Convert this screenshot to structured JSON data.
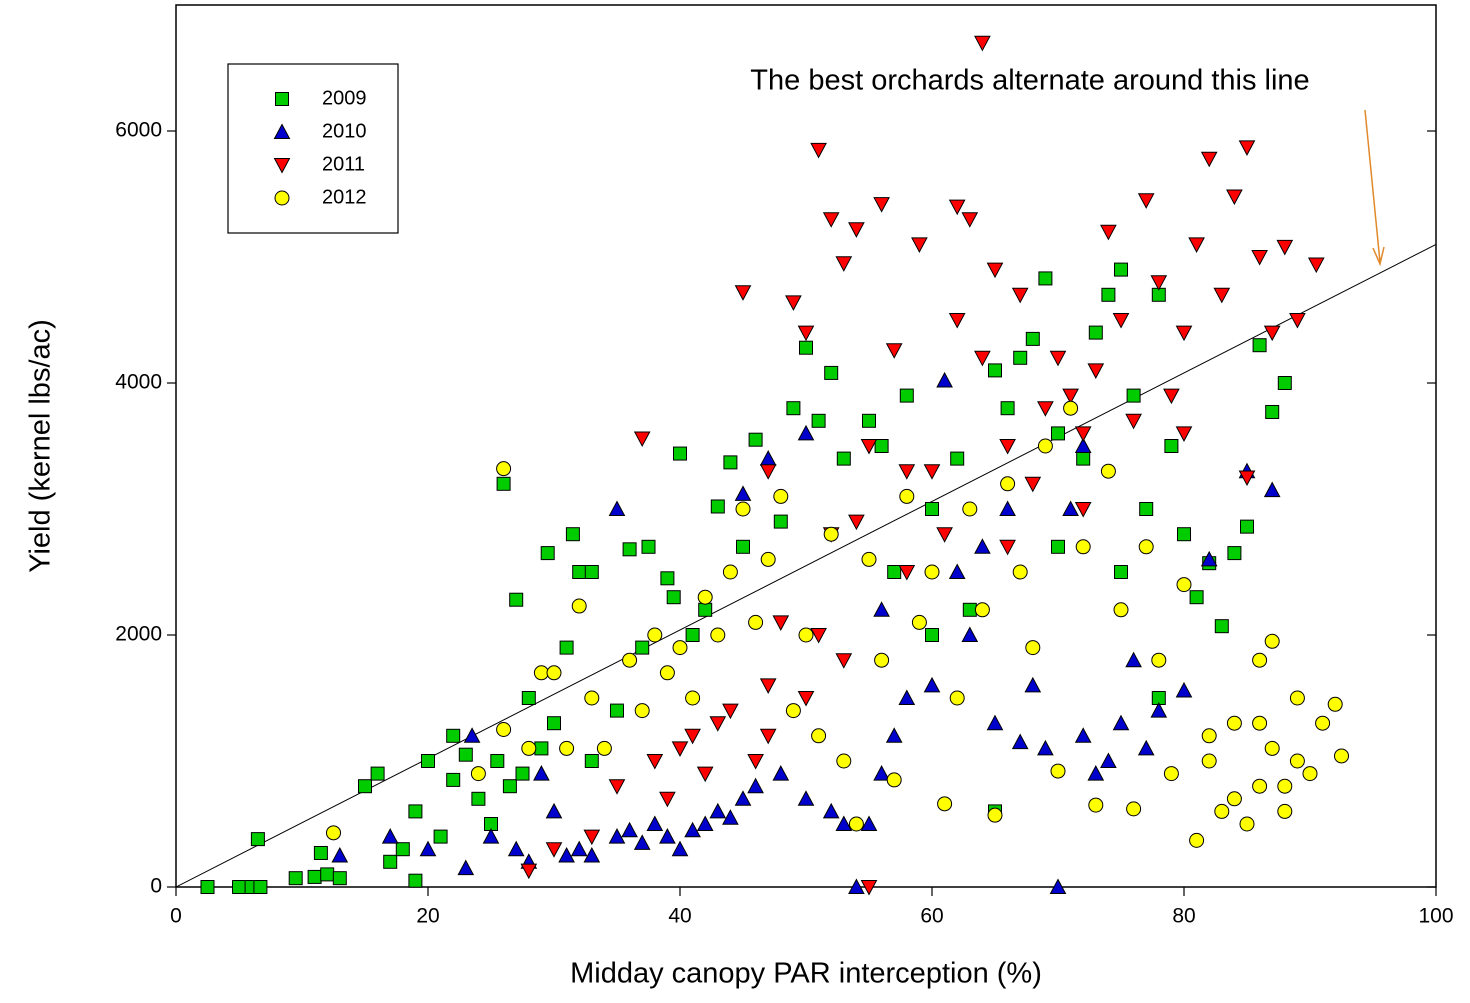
{
  "chart_data": {
    "type": "scatter",
    "xlabel": "Midday canopy PAR interception (%)",
    "ylabel": "Yield (kernel lbs/ac)",
    "annotation": "The best orchards alternate around this line",
    "xlim": [
      0,
      100
    ],
    "ylim": [
      0,
      7000
    ],
    "xticks": [
      0,
      20,
      40,
      60,
      80,
      100
    ],
    "yticks": [
      0,
      2000,
      4000,
      6000
    ],
    "legend": "upper left",
    "reference_line": {
      "x": [
        0,
        100
      ],
      "y": [
        0,
        5100
      ]
    },
    "series": [
      {
        "name": "2009",
        "color": "#00cc00",
        "marker": "square",
        "x": [
          2.5,
          5,
          6,
          6.7,
          6.5,
          9.5,
          11,
          11.5,
          12,
          13,
          15,
          16,
          17,
          18,
          19,
          19,
          20,
          21,
          22,
          22,
          23,
          24,
          25,
          26,
          25.5,
          26.5,
          27,
          27.5,
          28,
          29,
          29.5,
          30,
          31,
          31.5,
          32,
          33,
          33,
          35,
          36,
          37,
          37.5,
          39,
          39.5,
          40,
          41,
          42,
          43,
          44,
          45,
          46,
          48,
          49,
          50,
          51,
          52,
          53,
          55,
          56,
          58,
          60,
          62,
          63,
          65,
          66,
          67,
          68,
          69,
          70,
          72,
          73,
          74,
          75,
          76,
          77,
          78,
          79,
          80,
          81,
          82,
          83,
          84,
          85,
          86,
          87,
          88,
          78,
          75,
          57,
          60,
          65,
          70
        ],
        "y": [
          0,
          0,
          0,
          0,
          380,
          70,
          80,
          270,
          100,
          70,
          800,
          900,
          200,
          300,
          600,
          50,
          1000,
          400,
          850,
          1200,
          1050,
          700,
          500,
          3200,
          1000,
          800,
          2280,
          900,
          1500,
          1100,
          2650,
          1300,
          1900,
          2800,
          2500,
          2500,
          1000,
          1400,
          2680,
          1900,
          2700,
          2450,
          2300,
          3440,
          2000,
          2200,
          3020,
          3370,
          2700,
          3550,
          2900,
          3800,
          4280,
          3700,
          4080,
          3400,
          3700,
          3500,
          3900,
          3000,
          3400,
          2200,
          4100,
          3800,
          4200,
          4350,
          4830,
          3600,
          3400,
          4400,
          4700,
          4900,
          3900,
          3000,
          4700,
          3500,
          2800,
          2300,
          2570,
          2070,
          2650,
          2860,
          4300,
          3770,
          4000,
          1500,
          2500,
          2500,
          2000,
          600,
          2700
        ]
      },
      {
        "name": "2010",
        "color": "#0000cc",
        "marker": "triangle-up",
        "x": [
          13,
          17,
          20,
          23,
          23.5,
          25,
          27,
          28,
          29,
          30,
          31,
          32,
          33,
          35,
          35,
          36,
          37,
          38,
          39,
          40,
          41,
          42,
          43,
          44,
          45,
          45,
          46,
          47,
          48,
          50,
          50,
          52,
          53,
          54,
          55,
          56,
          57,
          58,
          60,
          61,
          62,
          63,
          65,
          67,
          68,
          69,
          70,
          71,
          72,
          73,
          74,
          75,
          76,
          77,
          78,
          80,
          82,
          85,
          87,
          66,
          72,
          64,
          56
        ],
        "y": [
          250,
          400,
          300,
          150,
          1200,
          400,
          300,
          200,
          900,
          600,
          250,
          300,
          250,
          3000,
          400,
          450,
          350,
          500,
          400,
          300,
          450,
          500,
          600,
          550,
          3120,
          700,
          800,
          3400,
          900,
          700,
          3600,
          600,
          500,
          0,
          500,
          900,
          1200,
          1500,
          1600,
          4020,
          2500,
          2000,
          1300,
          1150,
          1600,
          1100,
          0,
          3000,
          1200,
          900,
          1000,
          1300,
          1800,
          1100,
          1400,
          1560,
          2600,
          3300,
          3150,
          3000,
          3500,
          2700,
          2200
        ]
      },
      {
        "name": "2011",
        "color": "#ff0000",
        "marker": "triangle-down",
        "x": [
          28,
          30,
          33,
          35,
          37,
          38,
          39,
          40,
          41,
          42,
          43,
          44,
          45,
          46,
          47,
          47,
          48,
          49,
          50,
          50,
          51,
          51,
          52,
          52,
          53,
          53,
          54,
          55,
          55,
          56,
          57,
          58,
          59,
          60,
          61,
          62,
          62,
          63,
          64,
          64,
          65,
          66,
          67,
          68,
          69,
          70,
          71,
          72,
          73,
          74,
          75,
          76,
          77,
          78,
          79,
          80,
          81,
          82,
          83,
          84,
          85,
          86,
          87,
          88,
          89,
          90.5,
          85,
          80,
          72,
          66,
          58,
          54,
          47
        ],
        "y": [
          130,
          300,
          400,
          800,
          3560,
          1000,
          700,
          1100,
          1200,
          900,
          1300,
          1400,
          4720,
          1000,
          3300,
          1600,
          2100,
          4640,
          1500,
          4400,
          5850,
          2000,
          5300,
          2800,
          1800,
          4950,
          5220,
          0,
          3500,
          5420,
          4260,
          2500,
          5100,
          3300,
          2800,
          5400,
          4500,
          5300,
          6700,
          4200,
          4900,
          3500,
          4700,
          3200,
          3800,
          4200,
          3900,
          3600,
          4100,
          5200,
          4500,
          3700,
          5450,
          4800,
          3900,
          4400,
          5100,
          5780,
          4700,
          5480,
          5870,
          5000,
          4400,
          5080,
          4500,
          4940,
          3250,
          3600,
          3000,
          2700,
          3300,
          2900,
          1200
        ]
      },
      {
        "name": "2012",
        "color": "#ffff00",
        "marker": "circle",
        "x": [
          12.5,
          24,
          26,
          26,
          28,
          29,
          30,
          31,
          32,
          33,
          34,
          36,
          37,
          38,
          39,
          40,
          41,
          42,
          43,
          44,
          45,
          46,
          47,
          48,
          49,
          50,
          51,
          52,
          53,
          54,
          55,
          56,
          57,
          58,
          59,
          60,
          61,
          62,
          63,
          64,
          65,
          66,
          67,
          68,
          69,
          70,
          71,
          72,
          73,
          74,
          75,
          76,
          77,
          78,
          79,
          80,
          81,
          82,
          83,
          84,
          85,
          86,
          86,
          87,
          88,
          89,
          90,
          91,
          92,
          92.5,
          87,
          84,
          82,
          89,
          86,
          88
        ],
        "y": [
          430,
          900,
          3320,
          1250,
          1100,
          1700,
          1700,
          1100,
          2230,
          1500,
          1100,
          1800,
          1400,
          2000,
          1700,
          1900,
          1500,
          2300,
          2000,
          2500,
          3000,
          2100,
          2600,
          3100,
          1400,
          2000,
          1200,
          2800,
          1000,
          500,
          2600,
          1800,
          850,
          3100,
          2100,
          2500,
          660,
          1500,
          3000,
          2200,
          570,
          3200,
          2500,
          1900,
          3500,
          920,
          3800,
          2700,
          650,
          3300,
          2200,
          620,
          2700,
          1800,
          900,
          2400,
          370,
          1000,
          600,
          1300,
          500,
          1800,
          800,
          1100,
          600,
          1500,
          900,
          1300,
          1450,
          1040,
          1950,
          700,
          1200,
          1000,
          1300,
          800
        ]
      }
    ]
  }
}
